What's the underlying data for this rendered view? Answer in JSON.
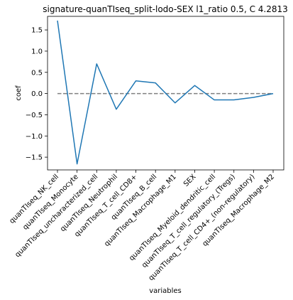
{
  "chart_data": {
    "type": "line",
    "title": "signature-quanTIseq_split-lodo-SEX l1_ratio 0.5, C 4.2813",
    "xlabel": "variables",
    "ylabel": "coef",
    "categories": [
      "quanTIseq_NK_cell",
      "quanTIseq_Monocyte",
      "quanTIseq_uncharacterized_cell",
      "quanTIseq_Neutrophil",
      "quanTIseq_T_cell_CD8+",
      "quanTIseq_B_cell",
      "quanTIseq_Macrophage_M1",
      "SEX",
      "quanTIseq_Myeloid_dendritic_cell",
      "quanTIseq_T_cell_regulatory_(Tregs)",
      "quanTIseq_T_cell_CD4+_(non-regulatory)",
      "quanTIseq_Macrophage_M2"
    ],
    "series": [
      {
        "values": [
          1.72,
          -1.66,
          0.7,
          -0.37,
          0.3,
          0.25,
          -0.22,
          0.19,
          -0.15,
          -0.15,
          -0.09,
          0.0
        ]
      }
    ],
    "reference_line": {
      "y": 0,
      "style": "dashed",
      "color": "#808080"
    },
    "ylim": [
      -1.8,
      1.82
    ],
    "yticks": [
      -1.5,
      -1.0,
      -0.5,
      0.0,
      0.5,
      1.0,
      1.5
    ],
    "ytick_labels": [
      "−1.5",
      "−1.0",
      "−0.5",
      "0.0",
      "0.5",
      "1.0",
      "1.5"
    ],
    "line_color": "#1f77b4",
    "grid": false,
    "legend": "none"
  }
}
